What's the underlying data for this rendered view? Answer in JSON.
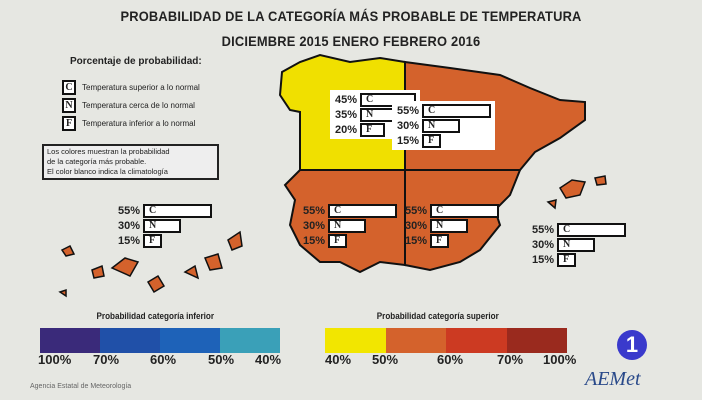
{
  "title": "PROBABILIDAD DE LA CATEGORÍA MÁS PROBABLE DE  TEMPERATURA",
  "subtitle": "DICIEMBRE 2015  ENERO  FEBRERO 2016",
  "legend": {
    "title": "Porcentaje de probabilidad:",
    "items": [
      {
        "key": "C",
        "label": "Temperatura superior a lo normal"
      },
      {
        "key": "N",
        "label": "Temperatura cerca de lo normal"
      },
      {
        "key": "F",
        "label": "Temperatura inferior a lo normal"
      }
    ],
    "note": [
      "Los colores muestran la probabilidad",
      "de la categoría más probable.",
      "El color blanco indica la climatología"
    ]
  },
  "regions": [
    {
      "name": "canarias",
      "C": "55%",
      "N": "30%",
      "F": "15%"
    },
    {
      "name": "noroeste",
      "C": "45%",
      "N": "35%",
      "F": "20%",
      "color": "#f0e000"
    },
    {
      "name": "noreste",
      "C": "55%",
      "N": "30%",
      "F": "15%",
      "color": "#d4622c"
    },
    {
      "name": "suroeste",
      "C": "55%",
      "N": "30%",
      "F": "15%",
      "color": "#d4622c"
    },
    {
      "name": "sureste",
      "C": "55%",
      "N": "30%",
      "F": "15%",
      "color": "#d4622c"
    },
    {
      "name": "baleares",
      "C": "55%",
      "N": "30%",
      "F": "15%"
    }
  ],
  "scale_inferior": {
    "title": "Probabilidad categoría inferior",
    "labels": [
      "100%",
      "70%",
      "60%",
      "50%",
      "40%"
    ],
    "colors": [
      "#3a2a7a",
      "#2050a8",
      "#1e62b8",
      "#3aa0b8"
    ]
  },
  "scale_superior": {
    "title": "Probabilidad categoría superior",
    "labels": [
      "40%",
      "50%",
      "60%",
      "70%",
      "100%"
    ],
    "colors": [
      "#f2e600",
      "#d4622c",
      "#cc3a22",
      "#9a2a1e"
    ]
  },
  "footer": "Agencia Estatal de Meteorología",
  "logo": "AEMet",
  "channel": "1"
}
